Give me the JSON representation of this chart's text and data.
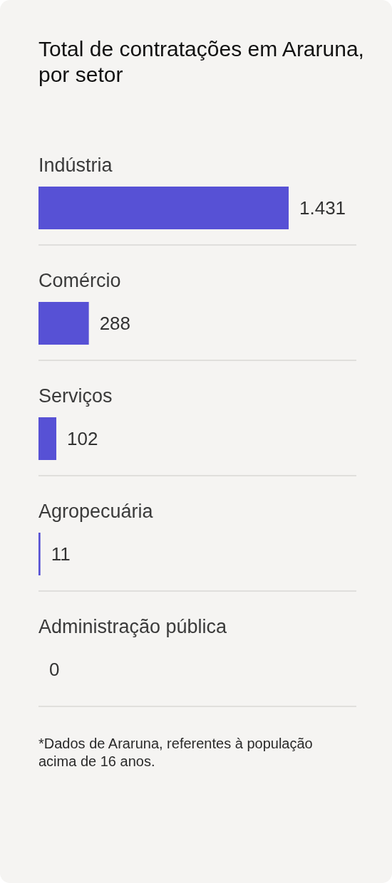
{
  "chart_data": {
    "type": "bar",
    "orientation": "horizontal",
    "title": "Total de contratações em Araruna, por setor",
    "categories": [
      "Indústria",
      "Comércio",
      "Serviços",
      "Agropecuária",
      "Administração pública"
    ],
    "values": [
      1431,
      288,
      102,
      11,
      0
    ],
    "color": "#5751d5",
    "value_labels": [
      "1.431",
      "288",
      "102",
      "11",
      "0"
    ],
    "grid": "y",
    "tick_labels": "y",
    "annotations": [
      "*Dados de Araruna, referentes à população acima de 16 anos."
    ]
  }
}
